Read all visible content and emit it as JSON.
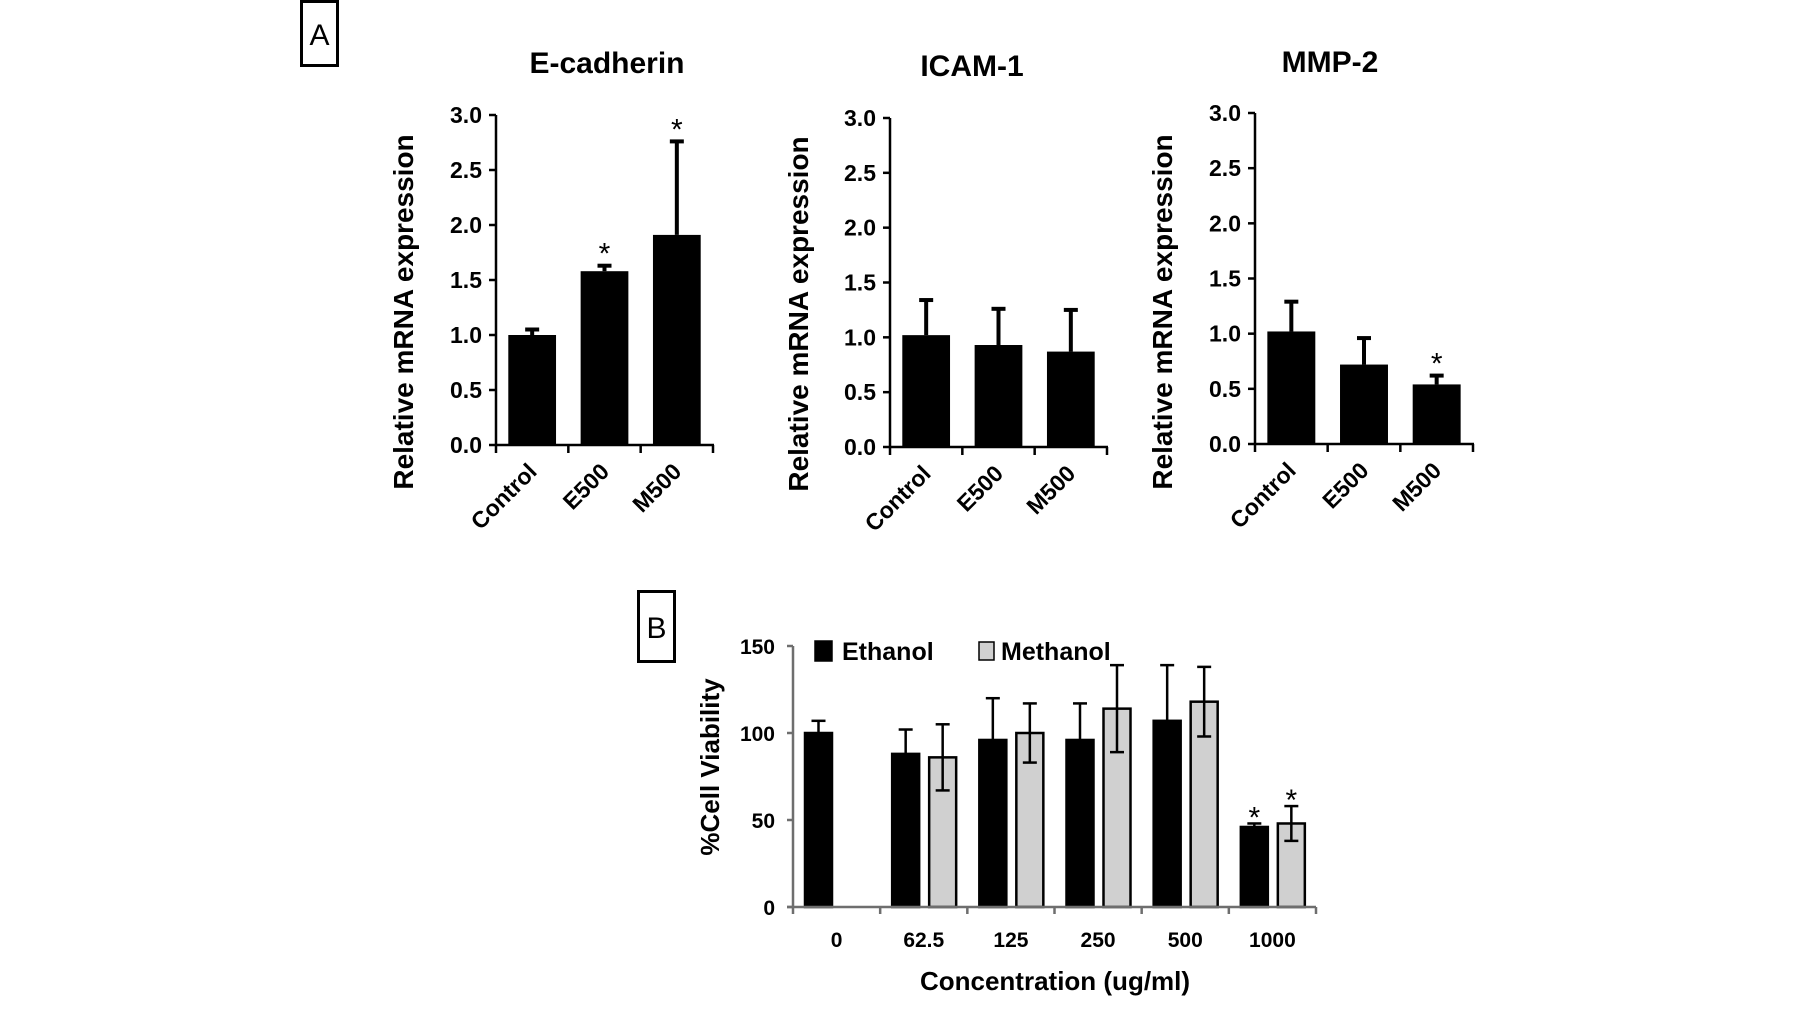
{
  "panels": {
    "a": "A",
    "b": "B"
  },
  "colors": {
    "ethanol": "#000000",
    "methanol": "#d0d0d0",
    "bar": "#000000",
    "axis_a": "#000000",
    "axis_b": "#6e6e6e"
  },
  "chart_data": [
    {
      "type": "bar",
      "title": "E-cadherin",
      "ylabel": "Relative mRNA expression",
      "xlabel": "",
      "categories": [
        "Control",
        "E500",
        "M500"
      ],
      "values": [
        1.0,
        1.58,
        1.91
      ],
      "error_upper": [
        1.05,
        1.63,
        2.76
      ],
      "significance": [
        "",
        "*",
        "*"
      ],
      "ylim": [
        0,
        3.0
      ],
      "yticks": [
        "0.0",
        "0.5",
        "1.0",
        "1.5",
        "2.0",
        "2.5",
        "3.0"
      ],
      "grid": false
    },
    {
      "type": "bar",
      "title": "ICAM-1",
      "ylabel": "Relative mRNA expression",
      "xlabel": "",
      "categories": [
        "Control",
        "E500",
        "M500"
      ],
      "values": [
        1.02,
        0.93,
        0.87
      ],
      "error_upper": [
        1.34,
        1.26,
        1.25
      ],
      "significance": [
        "",
        "",
        ""
      ],
      "ylim": [
        0,
        3.0
      ],
      "yticks": [
        "0.0",
        "0.5",
        "1.0",
        "1.5",
        "2.0",
        "2.5",
        "3.0"
      ],
      "grid": false
    },
    {
      "type": "bar",
      "title": "MMP-2",
      "ylabel": "Relative mRNA expression",
      "xlabel": "",
      "categories": [
        "Control",
        "E500",
        "M500"
      ],
      "values": [
        1.02,
        0.72,
        0.54
      ],
      "error_upper": [
        1.29,
        0.96,
        0.62
      ],
      "significance": [
        "",
        "",
        "*"
      ],
      "ylim": [
        0,
        3.0
      ],
      "yticks": [
        "0.0",
        "0.5",
        "1.0",
        "1.5",
        "2.0",
        "2.5",
        "3.0"
      ],
      "grid": false
    },
    {
      "type": "bar",
      "title": "",
      "ylabel": "%Cell Viability",
      "xlabel": "Concentration (ug/ml)",
      "categories": [
        "0",
        "62.5",
        "125",
        "250",
        "500",
        "1000"
      ],
      "series": [
        {
          "name": "Ethanol",
          "values": [
            100,
            88,
            96,
            96,
            107,
            46
          ],
          "error": [
            7,
            14,
            24,
            21,
            32,
            2
          ],
          "significance": [
            "",
            "",
            "",
            "",
            "",
            "*"
          ]
        },
        {
          "name": "Methanol",
          "values": [
            null,
            86,
            100,
            114,
            118,
            48
          ],
          "error": [
            null,
            19,
            17,
            25,
            20,
            10
          ],
          "significance": [
            "",
            "",
            "",
            "",
            "",
            "*"
          ]
        }
      ],
      "ylim": [
        0,
        150
      ],
      "yticks": [
        "0",
        "50",
        "100",
        "150"
      ],
      "legend_position": "top",
      "grid": false
    }
  ]
}
